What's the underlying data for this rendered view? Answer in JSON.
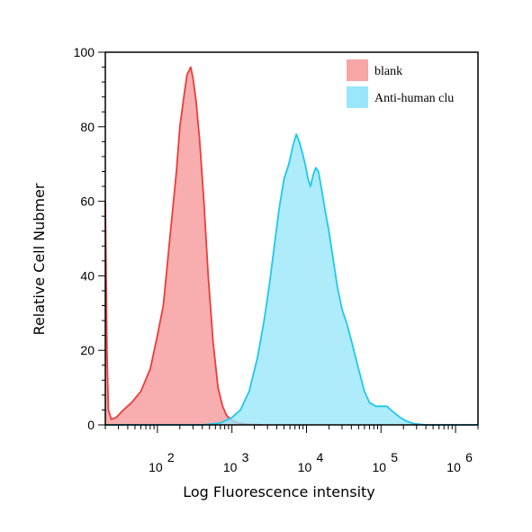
{
  "chart_data": {
    "type": "area",
    "title": "",
    "xlabel": "Log Fluorescence intensity",
    "ylabel": "Relative Cell Nubmer",
    "x_scale": "log",
    "xlim": [
      20,
      2000000
    ],
    "ylim": [
      0,
      100
    ],
    "grid": false,
    "legend_position": "top-right",
    "x_ticks": [
      {
        "value": 100,
        "base": "10",
        "exp": "2"
      },
      {
        "value": 1000,
        "base": "10",
        "exp": "3"
      },
      {
        "value": 10000,
        "base": "10",
        "exp": "4"
      },
      {
        "value": 100000,
        "base": "10",
        "exp": "5"
      },
      {
        "value": 1000000,
        "base": "10",
        "exp": "6"
      }
    ],
    "y_ticks": [
      "0",
      "20",
      "40",
      "60",
      "80",
      "100"
    ],
    "series": [
      {
        "name": "blank",
        "fill": "#f7a5a5",
        "stroke": "#ee3b3b",
        "points": [
          [
            20,
            60
          ],
          [
            21,
            20
          ],
          [
            22,
            4
          ],
          [
            24,
            1.5
          ],
          [
            28,
            2
          ],
          [
            35,
            4
          ],
          [
            45,
            6
          ],
          [
            60,
            9
          ],
          [
            80,
            15
          ],
          [
            100,
            24
          ],
          [
            120,
            32
          ],
          [
            150,
            52
          ],
          [
            180,
            68
          ],
          [
            200,
            80
          ],
          [
            230,
            89
          ],
          [
            250,
            94
          ],
          [
            280,
            96
          ],
          [
            300,
            93
          ],
          [
            330,
            87
          ],
          [
            370,
            76
          ],
          [
            420,
            60
          ],
          [
            480,
            40
          ],
          [
            560,
            22
          ],
          [
            650,
            10
          ],
          [
            750,
            5
          ],
          [
            850,
            2.5
          ],
          [
            1000,
            1.2
          ],
          [
            1200,
            0.5
          ],
          [
            1600,
            0.2
          ],
          [
            2500,
            0
          ]
        ]
      },
      {
        "name": "Anti-human clu",
        "fill": "#9ae6fa",
        "stroke": "#1ec8f0",
        "points": [
          [
            20,
            0
          ],
          [
            100,
            0
          ],
          [
            400,
            0
          ],
          [
            700,
            0.5
          ],
          [
            1000,
            2
          ],
          [
            1300,
            4
          ],
          [
            1700,
            9
          ],
          [
            2200,
            18
          ],
          [
            2700,
            28
          ],
          [
            3200,
            38
          ],
          [
            3700,
            48
          ],
          [
            4300,
            58
          ],
          [
            5000,
            66
          ],
          [
            5800,
            70
          ],
          [
            6600,
            75
          ],
          [
            7300,
            78
          ],
          [
            8000,
            76
          ],
          [
            8800,
            73
          ],
          [
            9600,
            70
          ],
          [
            10500,
            66
          ],
          [
            11300,
            64
          ],
          [
            12300,
            67
          ],
          [
            13300,
            69
          ],
          [
            14500,
            68
          ],
          [
            16000,
            63
          ],
          [
            18000,
            57
          ],
          [
            20000,
            52
          ],
          [
            23000,
            44
          ],
          [
            26000,
            37
          ],
          [
            30000,
            31
          ],
          [
            35000,
            27
          ],
          [
            42000,
            21
          ],
          [
            50000,
            15
          ],
          [
            60000,
            9
          ],
          [
            70000,
            6
          ],
          [
            85000,
            5
          ],
          [
            100000,
            5
          ],
          [
            120000,
            5
          ],
          [
            145000,
            3.5
          ],
          [
            180000,
            2
          ],
          [
            220000,
            1
          ],
          [
            280000,
            0.3
          ],
          [
            400000,
            0
          ],
          [
            2000000,
            0
          ]
        ]
      }
    ]
  }
}
